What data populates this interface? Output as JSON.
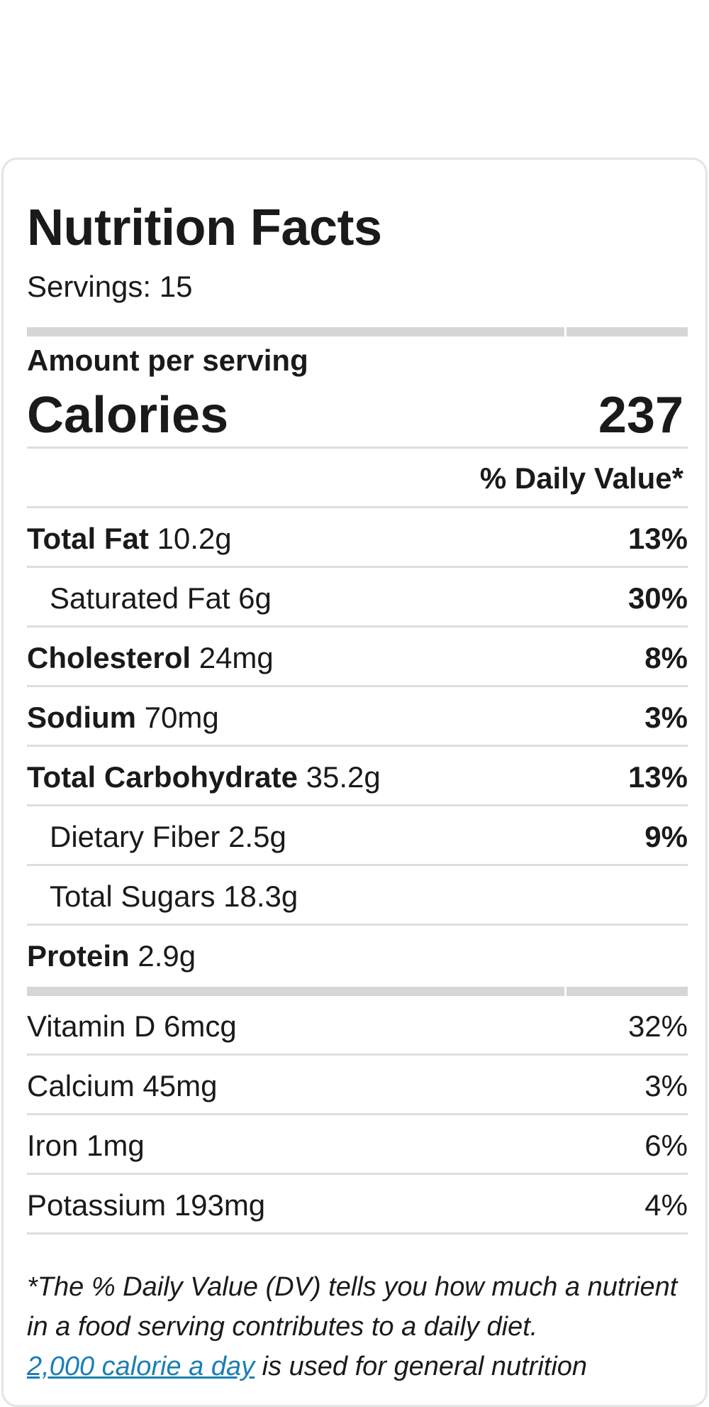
{
  "title": "Nutrition Facts",
  "servings": "Servings: 15",
  "amount_per_serving": "Amount per serving",
  "calories": {
    "label": "Calories",
    "value": "237"
  },
  "daily_value_header": "% Daily Value*",
  "nutrients": [
    {
      "name": "Total Fat",
      "amount": "10.2g",
      "pct": "13%"
    },
    {
      "name": "Saturated Fat",
      "amount": "6g",
      "pct": "30%"
    },
    {
      "name": "Cholesterol",
      "amount": "24mg",
      "pct": "8%"
    },
    {
      "name": "Sodium",
      "amount": "70mg",
      "pct": "3%"
    },
    {
      "name": "Total Carbohydrate",
      "amount": "35.2g",
      "pct": "13%"
    },
    {
      "name": "Dietary Fiber",
      "amount": "2.5g",
      "pct": "9%"
    },
    {
      "name": "Total Sugars",
      "amount": "18.3g",
      "pct": ""
    },
    {
      "name": "Protein",
      "amount": "2.9g",
      "pct": ""
    }
  ],
  "vitamins": [
    {
      "name": "Vitamin D",
      "amount": "6mcg",
      "pct": "32%"
    },
    {
      "name": "Calcium",
      "amount": "45mg",
      "pct": "3%"
    },
    {
      "name": "Iron",
      "amount": "1mg",
      "pct": "6%"
    },
    {
      "name": "Potassium",
      "amount": "193mg",
      "pct": "4%"
    }
  ],
  "footnote": {
    "text_1": "*The % Daily Value (DV) tells you how much a nutrient in a food serving contributes to a daily diet.",
    "link": "2,000 calorie a day",
    "text_2": " is used for general nutrition"
  },
  "colors": {
    "link": "#1a7fb5",
    "divider": "#dedede",
    "thick_divider": "#d6d6d6"
  }
}
